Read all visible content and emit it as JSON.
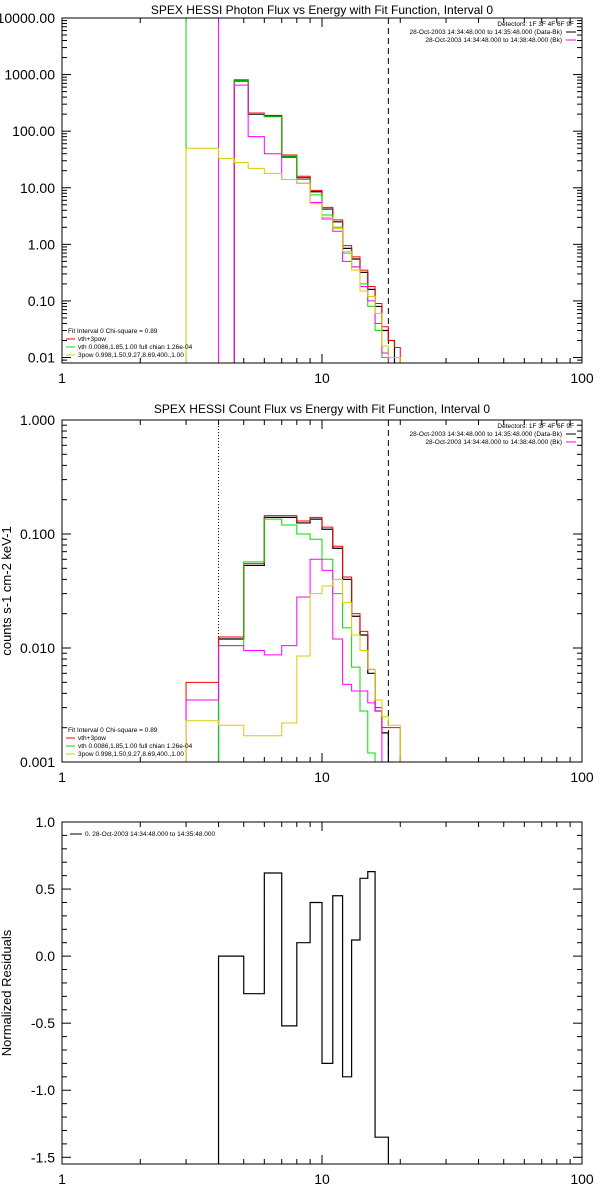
{
  "colors": {
    "black": "#000000",
    "red": "#ff0000",
    "green": "#00dd00",
    "magenta": "#ff00ff",
    "yellow": "#ddcc00",
    "gray": "#999999"
  },
  "chart_data": [
    {
      "type": "line",
      "title": "SPEX HESSI Photon Flux vs Energy with Fit Function, Interval 0",
      "xscale": "log",
      "yscale": "log",
      "xlim": [
        1,
        100
      ],
      "ylim": [
        0.008,
        10000
      ],
      "xticks": [
        "1",
        "10",
        "100"
      ],
      "yticks": [
        {
          "value": 10000,
          "label": "10000.00"
        },
        {
          "value": 1000,
          "label": "1000.00"
        },
        {
          "value": 100,
          "label": "100.00"
        },
        {
          "value": 10,
          "label": "10.00"
        },
        {
          "value": 1,
          "label": "1.00"
        },
        {
          "value": 0.1,
          "label": "0.10"
        },
        {
          "value": 0.01,
          "label": "0.01"
        }
      ],
      "vlines": [
        {
          "x": 3.0,
          "style": "solid",
          "color": "green"
        },
        {
          "x": 4.0,
          "style": "solid",
          "color": "magenta"
        },
        {
          "x": 18.0,
          "style": "dashed",
          "color": "black"
        }
      ],
      "legend_tr": [
        {
          "text": "Detectors: 1F 3F 4F 6F 9F"
        },
        {
          "text": "28-Oct-2003 14:34:48.000 to 14:35:48.000 (Data-Bk)",
          "color": "black"
        },
        {
          "text": "28-Oct-2003 14:34:48.000 to 14:38:48.000 (Bk)",
          "color": "magenta"
        }
      ],
      "legend_bl": [
        {
          "text": "Fit Interval 0   Chi-square = 0.89"
        },
        {
          "text": "vth+3pow",
          "color": "red"
        },
        {
          "text": "vth 0.0086,1.85,1.00  full chian 1.26e-04",
          "color": "green"
        },
        {
          "text": "3pow 0.998,1.50,9.27,8.69,400.,1.00",
          "color": "yellow"
        }
      ],
      "edges": [
        3.0,
        4.0,
        4.6,
        5.2,
        6.0,
        7.0,
        8.0,
        9.0,
        10.0,
        11.0,
        12.0,
        13.0,
        14.0,
        15.0,
        16.0,
        17.0,
        18.0,
        19.0,
        20.0
      ],
      "series": [
        {
          "color": "black",
          "width": 1.2,
          "values": [
            null,
            null,
            800,
            200,
            185,
            35,
            15,
            8.5,
            4.2,
            2.5,
            0.85,
            0.55,
            0.32,
            0.16,
            0.08,
            0.03,
            0.02,
            null
          ]
        },
        {
          "color": "red",
          "width": 1,
          "values": [
            null,
            null,
            760,
            210,
            190,
            38,
            16,
            9.0,
            4.5,
            2.7,
            0.95,
            0.6,
            0.35,
            0.18,
            0.09,
            0.035,
            0.02,
            0.015
          ]
        },
        {
          "color": "green",
          "width": 1,
          "values": [
            null,
            null,
            780,
            205,
            180,
            36,
            14,
            7.5,
            3.3,
            2.0,
            0.7,
            0.4,
            0.2,
            0.08,
            0.03,
            0.01,
            null,
            null
          ]
        },
        {
          "color": "magenta",
          "width": 1,
          "values": [
            null,
            null,
            650,
            80,
            40,
            14,
            12,
            5.5,
            2.8,
            1.7,
            0.5,
            0.4,
            0.18,
            0.1,
            0.04,
            0.012,
            null,
            null
          ]
        },
        {
          "color": "yellow",
          "width": 1,
          "values": [
            50,
            33,
            28,
            22,
            18,
            14,
            12,
            5.2,
            3.0,
            1.9,
            0.75,
            0.35,
            0.15,
            0.12,
            0.06,
            0.016,
            0.01,
            0.01
          ]
        }
      ]
    },
    {
      "type": "line",
      "title": "SPEX HESSI Count Flux vs Energy with Fit Function, Interval 0",
      "ylabel": "counts s-1 cm-2 keV-1",
      "xscale": "log",
      "yscale": "log",
      "xlim": [
        1,
        100
      ],
      "ylim": [
        0.001,
        1.0
      ],
      "xticks": [
        "1",
        "10",
        "100"
      ],
      "yticks": [
        {
          "value": 1.0,
          "label": "1.000"
        },
        {
          "value": 0.1,
          "label": "0.100"
        },
        {
          "value": 0.01,
          "label": "0.010"
        },
        {
          "value": 0.001,
          "label": "0.001"
        }
      ],
      "vlines": [
        {
          "x": 4.0,
          "style": "dotted",
          "color": "black"
        },
        {
          "x": 18.0,
          "style": "dashed",
          "color": "black"
        }
      ],
      "legend_tr": [
        {
          "text": "Detectors: 1F 3F 4F 6F 9F"
        },
        {
          "text": "28-Oct-2003 14:34:48.000 to 14:35:48.000 (Data-Bk)",
          "color": "black"
        },
        {
          "text": "28-Oct-2003 14:34:48.000 to 14:38:48.000 (Bk)",
          "color": "magenta"
        }
      ],
      "legend_bl": [
        {
          "text": "Fit Interval 0   Chi-square = 0.89"
        },
        {
          "text": "vth+3pow",
          "color": "red"
        },
        {
          "text": "vth 0.0086,1.85,1.00  full chian 1.26e-04",
          "color": "green"
        },
        {
          "text": "3pow 0.998,1.50,9.27,8.69,400.,1.00",
          "color": "yellow"
        }
      ],
      "edges": [
        3.0,
        4.0,
        5.0,
        6.0,
        7.0,
        8.0,
        9.0,
        10.0,
        11.0,
        12.0,
        13.0,
        14.0,
        15.0,
        16.0,
        17.0,
        18.0,
        19.0,
        20.0
      ],
      "series": [
        {
          "color": "black",
          "width": 1.2,
          "values": [
            null,
            0.012,
            0.053,
            0.14,
            0.14,
            0.125,
            0.135,
            0.11,
            0.075,
            0.04,
            0.019,
            0.013,
            0.006,
            0.0028,
            0.0018,
            null,
            null
          ]
        },
        {
          "color": "red",
          "width": 1,
          "values": [
            0.005,
            0.0125,
            0.055,
            0.145,
            0.145,
            0.13,
            0.14,
            0.115,
            0.078,
            0.042,
            0.02,
            0.014,
            0.0065,
            0.003,
            0.002,
            0.002,
            0.002
          ]
        },
        {
          "color": "green",
          "width": 1,
          "values": [
            null,
            0.0105,
            0.057,
            0.135,
            0.12,
            0.1,
            0.09,
            0.06,
            0.03,
            0.015,
            0.0068,
            0.0028,
            0.0012,
            0.0007,
            null,
            null,
            null
          ]
        },
        {
          "color": "magenta",
          "width": 1,
          "values": [
            0.0035,
            0.0105,
            0.0095,
            0.0087,
            0.0105,
            0.028,
            0.06,
            0.048,
            0.012,
            0.0048,
            0.0042,
            0.0042,
            0.0033,
            0.0028,
            null,
            null,
            null
          ]
        },
        {
          "color": "yellow",
          "width": 1,
          "values": [
            0.0023,
            0.0021,
            0.0017,
            0.0017,
            0.0022,
            0.0085,
            0.03,
            0.035,
            0.04,
            0.025,
            0.013,
            0.0095,
            0.0065,
            0.0035,
            0.0025,
            0.0021,
            0.0021
          ]
        }
      ]
    },
    {
      "type": "line",
      "title": "",
      "ylabel": "Normalized Residuals",
      "xscale": "log",
      "yscale": "linear",
      "xlim": [
        1,
        100
      ],
      "ylim": [
        -1.55,
        1.0
      ],
      "xticks": [
        "1",
        "10",
        "100"
      ],
      "yticks": [
        {
          "value": 1.0,
          "label": "1.0"
        },
        {
          "value": 0.5,
          "label": "0.5"
        },
        {
          "value": 0.0,
          "label": "0.0"
        },
        {
          "value": -0.5,
          "label": "-0.5"
        },
        {
          "value": -1.0,
          "label": "-1.0"
        },
        {
          "value": -1.5,
          "label": "-1.5"
        }
      ],
      "vlines": [],
      "legend_tr": [],
      "legend_bl": [],
      "legend_tl": [
        {
          "text": "0. 28-Oct-2003 14:34:48.000 to 14:35:48.000",
          "color": "black"
        }
      ],
      "edges": [
        4.0,
        5.0,
        6.0,
        7.0,
        8.0,
        9.0,
        10.0,
        11.0,
        12.0,
        13.0,
        14.0,
        15.0,
        16.0,
        17.0,
        18.0
      ],
      "series": [
        {
          "color": "black",
          "width": 1.2,
          "values": [
            0.0,
            -0.28,
            0.62,
            -0.52,
            0.1,
            0.4,
            -0.8,
            0.45,
            -0.9,
            0.12,
            0.58,
            0.63,
            -1.35,
            -1.35
          ]
        }
      ]
    }
  ]
}
